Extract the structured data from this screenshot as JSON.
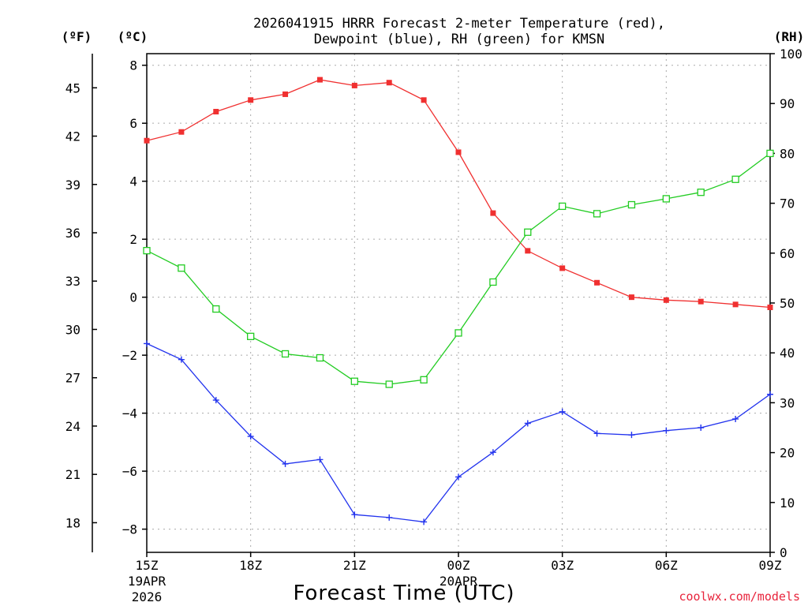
{
  "chart_data": {
    "type": "line",
    "title_line1": "2026041915 HRRR Forecast 2-meter Temperature (red),",
    "title_line2": "Dewpoint (blue), RH (green) for KMSN",
    "xlabel": "Forecast Time (UTC)",
    "credit": "coolwx.com/models",
    "units": {
      "fahrenheit": "(ºF)",
      "celsius": "(ºC)",
      "rh": "(RH)"
    },
    "x_hours": [
      0,
      1,
      2,
      3,
      4,
      5,
      6,
      7,
      8,
      9,
      10,
      11,
      12,
      13,
      14,
      15,
      16,
      17,
      18
    ],
    "x_ticks": [
      {
        "hour": 0,
        "label": "15Z",
        "sub1": "19APR",
        "sub2": "2026"
      },
      {
        "hour": 3,
        "label": "18Z",
        "sub1": "",
        "sub2": ""
      },
      {
        "hour": 6,
        "label": "21Z",
        "sub1": "",
        "sub2": ""
      },
      {
        "hour": 9,
        "label": "00Z",
        "sub1": "20APR",
        "sub2": ""
      },
      {
        "hour": 12,
        "label": "03Z",
        "sub1": "",
        "sub2": ""
      },
      {
        "hour": 15,
        "label": "06Z",
        "sub1": "",
        "sub2": ""
      },
      {
        "hour": 18,
        "label": "09Z",
        "sub1": "",
        "sub2": ""
      }
    ],
    "celsius_ticks": [
      "8",
      "6",
      "4",
      "2",
      "0",
      "−2",
      "−4",
      "−6",
      "−8"
    ],
    "celsius_tick_values": [
      8,
      6,
      4,
      2,
      0,
      -2,
      -4,
      -6,
      -8
    ],
    "fahrenheit_ticks": [
      "45",
      "42",
      "39",
      "36",
      "33",
      "30",
      "27",
      "24",
      "21",
      "18"
    ],
    "fahrenheit_tick_values": [
      45,
      42,
      39,
      36,
      33,
      30,
      27,
      24,
      21,
      18
    ],
    "rh_ticks": [
      "100",
      "90",
      "80",
      "70",
      "60",
      "50",
      "40",
      "30",
      "20",
      "10",
      "0"
    ],
    "rh_tick_values": [
      100,
      90,
      80,
      70,
      60,
      50,
      40,
      30,
      20,
      10,
      0
    ],
    "celsius_range": [
      -8.8,
      8.4
    ],
    "rh_range": [
      0,
      100
    ],
    "series": [
      {
        "name": "Temperature",
        "color": "#f03030",
        "marker": "filled-square",
        "axis": "celsius",
        "values": [
          5.4,
          5.7,
          6.4,
          6.8,
          7.0,
          7.5,
          7.3,
          7.4,
          6.8,
          5.0,
          2.9,
          1.6,
          1.0,
          0.5,
          0.0,
          -0.1,
          -0.15,
          -0.25,
          -0.35
        ]
      },
      {
        "name": "Dewpoint",
        "color": "#2233ee",
        "marker": "plus",
        "axis": "celsius",
        "values": [
          -1.6,
          -2.15,
          -3.55,
          -4.8,
          -5.75,
          -5.6,
          -7.5,
          -7.6,
          -7.75,
          -6.2,
          -5.35,
          -4.35,
          -3.95,
          -4.7,
          -4.75,
          -4.6,
          -4.5,
          -4.2,
          -3.35
        ]
      },
      {
        "name": "RH",
        "color": "#22cc22",
        "marker": "open-square",
        "axis": "rh",
        "values": [
          60.5,
          57.0,
          48.8,
          43.3,
          39.8,
          39.0,
          34.3,
          33.7,
          34.6,
          44.0,
          54.2,
          64.2,
          69.4,
          67.9,
          69.7,
          70.9,
          72.2,
          74.8,
          80.0
        ]
      }
    ]
  }
}
